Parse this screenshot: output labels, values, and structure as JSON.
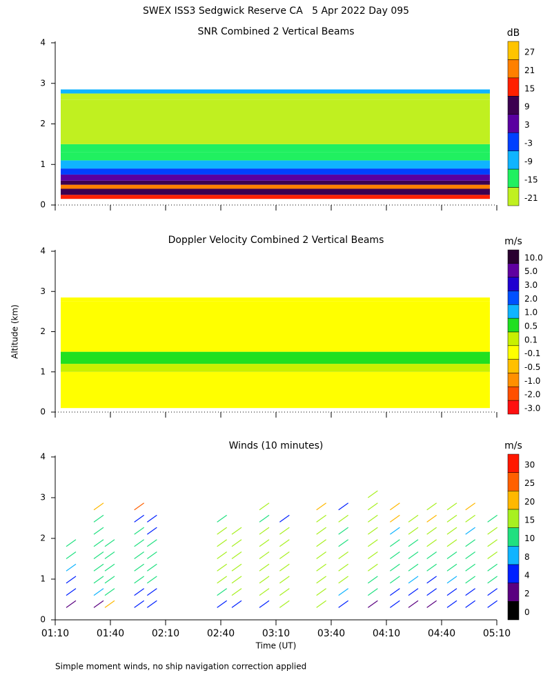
{
  "title": "SWEX ISS3 Sedgwick Reserve CA   5 Apr 2022 Day 095",
  "footnote": "Simple moment winds, no ship navigation correction applied",
  "chart_data": [
    {
      "type": "heatmap",
      "title": "SNR Combined 2 Vertical Beams",
      "xlim": [
        70,
        310
      ],
      "xticks": [
        70,
        100,
        130,
        160,
        190,
        220,
        250,
        280,
        310
      ],
      "ylim": [
        0,
        4
      ],
      "yticks": [
        0,
        1,
        2,
        3,
        4
      ],
      "altitude_edges": [
        0.15,
        0.25,
        0.4,
        0.5,
        0.6,
        0.75,
        0.9,
        1.1,
        1.3,
        1.5,
        2.6,
        2.75,
        2.85
      ],
      "values": [
        18,
        12,
        22,
        14,
        6,
        0,
        -6,
        -10,
        -14,
        -19,
        -19,
        -6
      ],
      "colorbar": {
        "label": "dB",
        "ticks": [
          27,
          21,
          15,
          9,
          3,
          -3,
          -9,
          -15,
          -21
        ],
        "colors": [
          "#ffc400",
          "#ff8000",
          "#ff2000",
          "#3c0050",
          "#5a00a0",
          "#0040ff",
          "#10b4ff",
          "#20f060",
          "#c0f020"
        ]
      }
    },
    {
      "type": "heatmap",
      "title": "Doppler Velocity Combined 2 Vertical Beams",
      "xlim": [
        70,
        310
      ],
      "xticks": [
        70,
        100,
        130,
        160,
        190,
        220,
        250,
        280,
        310
      ],
      "ylim": [
        0,
        4
      ],
      "yticks": [
        0,
        1,
        2,
        3,
        4
      ],
      "ylabel": "Altitude (km)",
      "altitude_edges": [
        0.1,
        1.0,
        1.2,
        1.5,
        2.75,
        2.85
      ],
      "values": [
        0,
        0.3,
        0.6,
        0,
        0
      ],
      "colorbar": {
        "label": "m/s",
        "ticks": [
          {
            "value": 10,
            "label": "10.0"
          },
          {
            "value": 5,
            "label": "5.0"
          },
          {
            "value": 3,
            "label": "3.0"
          },
          {
            "value": 2,
            "label": "2.0"
          },
          {
            "value": 1,
            "label": "1.0"
          },
          0.5,
          0.1,
          -0.1,
          -0.5,
          {
            "value": -1,
            "label": "-1.0"
          },
          {
            "value": -2,
            "label": "-2.0"
          },
          {
            "value": -3,
            "label": "-3.0"
          }
        ],
        "colors": [
          "#2a0030",
          "#6000a0",
          "#2000d0",
          "#0050ff",
          "#10b4ff",
          "#20e020",
          "#c8f000",
          "#ffff00",
          "#ffc000",
          "#ff9000",
          "#ff5000",
          "#ff1010"
        ]
      }
    },
    {
      "type": "barbs",
      "title": "Winds (10 minutes)",
      "xlabel": "Time (UT)",
      "xlim": [
        70,
        310
      ],
      "xticks": [
        {
          "value": 70,
          "label": "01:10"
        },
        {
          "value": 100,
          "label": "01:40"
        },
        {
          "value": 130,
          "label": "02:10"
        },
        {
          "value": 160,
          "label": "02:40"
        },
        {
          "value": 190,
          "label": "03:10"
        },
        {
          "value": 220,
          "label": "03:40"
        },
        {
          "value": 250,
          "label": "04:10"
        },
        {
          "value": 280,
          "label": "04:40"
        },
        {
          "value": 310,
          "label": "05:10"
        }
      ],
      "ylim": [
        0,
        4
      ],
      "yticks": [
        0,
        1,
        2,
        3,
        4
      ],
      "altitudes": [
        0.3,
        0.6,
        0.9,
        1.2,
        1.5,
        1.8,
        2.1,
        2.4,
        2.7,
        3.0
      ],
      "times": [
        76,
        91,
        97,
        113,
        120,
        158,
        166,
        181,
        192,
        212,
        224,
        240,
        252,
        262,
        272,
        283,
        293,
        305
      ],
      "speeds": [
        [
          3,
          4,
          6,
          8,
          12,
          14,
          null,
          null,
          null,
          null
        ],
        [
          2,
          8,
          10,
          12,
          12,
          12,
          10,
          10,
          22,
          null
        ],
        [
          20,
          14,
          12,
          12,
          14,
          10,
          null,
          null,
          null,
          null
        ],
        [
          4,
          6,
          12,
          12,
          14,
          10,
          12,
          4,
          25,
          null
        ],
        [
          4,
          6,
          12,
          12,
          14,
          12,
          4,
          4,
          null,
          null
        ],
        [
          4,
          14,
          15,
          16,
          16,
          16,
          16,
          14,
          null,
          null
        ],
        [
          4,
          16,
          16,
          16,
          16,
          16,
          16,
          null,
          null,
          null
        ],
        [
          4,
          16,
          16,
          16,
          16,
          16,
          16,
          14,
          16,
          null
        ],
        [
          16,
          16,
          16,
          16,
          16,
          16,
          16,
          6,
          null,
          null
        ],
        [
          18,
          18,
          18,
          18,
          18,
          18,
          18,
          16,
          22,
          null
        ],
        [
          4,
          8,
          16,
          16,
          16,
          14,
          12,
          16,
          6,
          null
        ],
        [
          3,
          14,
          14,
          16,
          16,
          16,
          16,
          18,
          18,
          18
        ],
        [
          4,
          4,
          10,
          10,
          10,
          12,
          8,
          20,
          22,
          null
        ],
        [
          3,
          6,
          8,
          10,
          14,
          12,
          16,
          16,
          null,
          null
        ],
        [
          3,
          4,
          6,
          12,
          14,
          16,
          16,
          22,
          16,
          null
        ],
        [
          4,
          6,
          8,
          12,
          14,
          16,
          16,
          18,
          16,
          null
        ],
        [
          4,
          6,
          10,
          12,
          14,
          10,
          8,
          16,
          22,
          null
        ],
        [
          4,
          6,
          10,
          14,
          18,
          18,
          16,
          12,
          null,
          null
        ]
      ],
      "colorbar": {
        "label": "m/s",
        "ticks": [
          30,
          25,
          20,
          15,
          10,
          8,
          4,
          2,
          0
        ],
        "colors": [
          "#ff1800",
          "#ff6000",
          "#ffb800",
          "#a8f020",
          "#20e080",
          "#10b4ff",
          "#0020ff",
          "#5a0080",
          "#000000"
        ]
      }
    }
  ]
}
